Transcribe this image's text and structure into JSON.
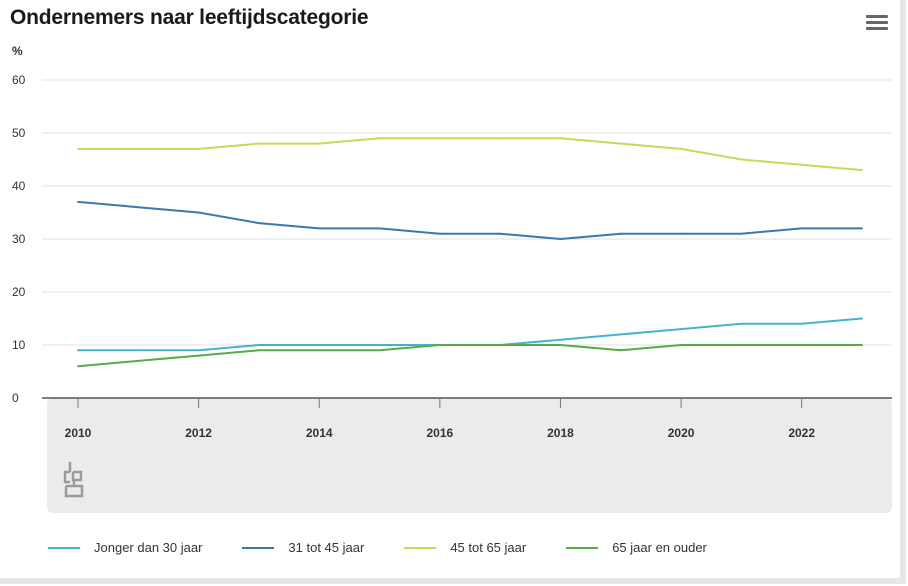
{
  "chart_data": {
    "type": "line",
    "title": "Ondernemers naar leeftijdscategorie",
    "ylabel": "%",
    "ylim": [
      0,
      60
    ],
    "yticks": [
      0,
      10,
      20,
      30,
      40,
      50,
      60
    ],
    "x": [
      2010,
      2011,
      2012,
      2013,
      2014,
      2015,
      2016,
      2017,
      2018,
      2019,
      2020,
      2021,
      2022,
      2023
    ],
    "xticks": [
      "2010",
      "2012",
      "2014",
      "2016",
      "2018",
      "2020",
      "2022"
    ],
    "grid": true,
    "legend_position": "bottom",
    "series": [
      {
        "name": "Jonger dan 30 jaar",
        "color": "#46b4c8",
        "values": [
          9,
          9,
          9,
          10,
          10,
          10,
          10,
          10,
          11,
          12,
          13,
          14,
          14,
          15
        ]
      },
      {
        "name": "31 tot 45 jaar",
        "color": "#3a78b0",
        "values": [
          37,
          36,
          35,
          33,
          32,
          32,
          31,
          31,
          30,
          31,
          31,
          31,
          32,
          32
        ]
      },
      {
        "name": "45 tot 65 jaar",
        "color": "#c2dc5a",
        "values": [
          47,
          47,
          47,
          48,
          48,
          49,
          49,
          49,
          49,
          48,
          47,
          45,
          44,
          43
        ]
      },
      {
        "name": "65 jaar en ouder",
        "color": "#5aaa4a",
        "values": [
          6,
          7,
          8,
          9,
          9,
          9,
          10,
          10,
          10,
          9,
          10,
          10,
          10,
          10
        ]
      }
    ]
  },
  "icons": {
    "menu": "hamburger-menu-icon",
    "logo": "cbs-logo-icon"
  }
}
